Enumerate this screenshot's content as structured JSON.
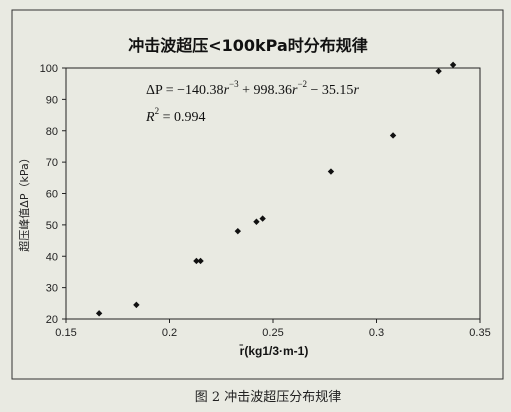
{
  "chart_data": {
    "type": "scatter",
    "title": "冲击波超压<100kPa时分布规律",
    "xlabel": "r̄(kg1/3·m-1)",
    "ylabel": "超压峰值ΔP（kPa）",
    "xlim": [
      0.15,
      0.35
    ],
    "ylim": [
      20,
      100
    ],
    "x_ticks": [
      "0.15",
      "0.2",
      "0.25",
      "0.3",
      "0.35"
    ],
    "y_ticks": [
      "20",
      "30",
      "40",
      "50",
      "60",
      "70",
      "80",
      "90",
      "100"
    ],
    "grid": false,
    "legend": "none",
    "series": [
      {
        "points": [
          {
            "x": 0.166,
            "y": 21.8
          },
          {
            "x": 0.184,
            "y": 24.5
          },
          {
            "x": 0.213,
            "y": 38.5
          },
          {
            "x": 0.215,
            "y": 38.5
          },
          {
            "x": 0.233,
            "y": 48.0
          },
          {
            "x": 0.242,
            "y": 51.0
          },
          {
            "x": 0.245,
            "y": 52.0
          },
          {
            "x": 0.278,
            "y": 67.0
          },
          {
            "x": 0.308,
            "y": 78.5
          },
          {
            "x": 0.33,
            "y": 99.0
          },
          {
            "x": 0.337,
            "y": 101.0
          }
        ]
      }
    ],
    "fit": {
      "coefficients": {
        "a": -140.38,
        "b": 998.36,
        "c": -35.15
      },
      "x_range": [
        0.166,
        0.337
      ]
    },
    "annotations": {
      "equation_lhs": "ΔP = −140.38",
      "term1_exp": "−3",
      "mid1": " + 998.36",
      "term2_exp": "−2",
      "mid2": " − 35.15",
      "r_symbol": "r",
      "r2_label": "R",
      "r2_exp": "2",
      "r2_value": " = 0.994"
    }
  },
  "caption": "图 2  冲击波超压分布规律",
  "colors": {
    "marker": "#111111",
    "line": "#111111",
    "background": "#e9eae2"
  }
}
